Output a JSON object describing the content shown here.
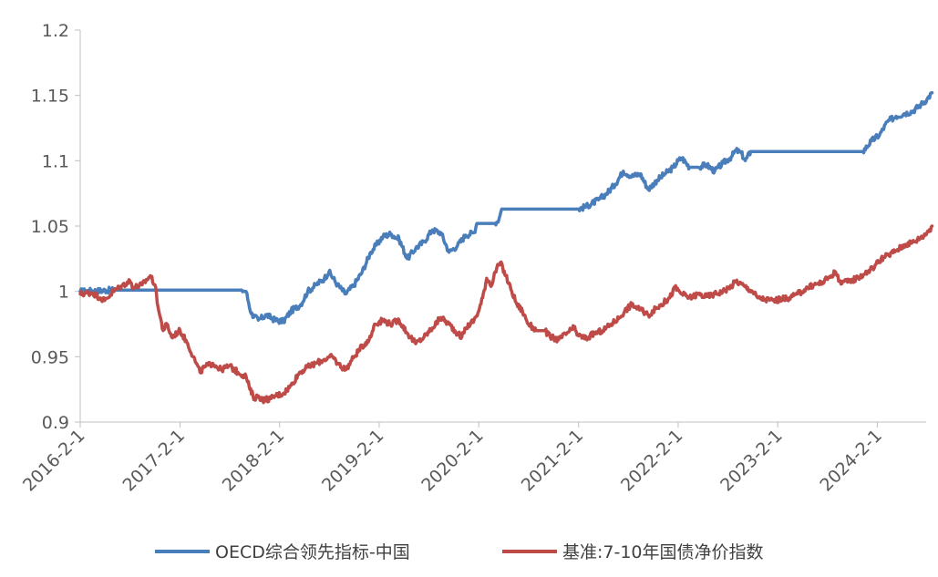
{
  "chart_data": {
    "type": "line",
    "title": "",
    "xlabel": "",
    "ylabel": "",
    "ylim": [
      0.9,
      1.2
    ],
    "yticks": [
      "0.9",
      "0.95",
      "1",
      "1.05",
      "1.1",
      "1.15",
      "1.2"
    ],
    "xticks": [
      "2016-2-1",
      "2017-2-1",
      "2018-2-1",
      "2019-2-1",
      "2020-2-1",
      "2021-2-1",
      "2022-2-1",
      "2023-2-1",
      "2024-2-1"
    ],
    "grid": false,
    "legend_position": "bottom",
    "series": [
      {
        "name": "OECD综合领先指标-中国",
        "color": "#4a7ebb",
        "points": [
          [
            "2016-02-01",
            1.0
          ],
          [
            "2016-06-01",
            1.001
          ],
          [
            "2016-10-01",
            1.001
          ],
          [
            "2017-02-01",
            1.001
          ],
          [
            "2017-06-01",
            1.001
          ],
          [
            "2017-09-15",
            1.001
          ],
          [
            "2017-10-01",
            1.0
          ],
          [
            "2017-10-20",
            0.983
          ],
          [
            "2017-11-15",
            0.978
          ],
          [
            "2017-12-15",
            0.982
          ],
          [
            "2018-01-15",
            0.978
          ],
          [
            "2018-02-15",
            0.977
          ],
          [
            "2018-03-15",
            0.985
          ],
          [
            "2018-04-20",
            0.99
          ],
          [
            "2018-05-15",
            1.0
          ],
          [
            "2018-06-15",
            1.005
          ],
          [
            "2018-07-15",
            1.01
          ],
          [
            "2018-08-01",
            1.015
          ],
          [
            "2018-09-01",
            1.005
          ],
          [
            "2018-10-01",
            0.998
          ],
          [
            "2018-11-01",
            1.005
          ],
          [
            "2018-12-01",
            1.015
          ],
          [
            "2019-01-01",
            1.03
          ],
          [
            "2019-02-15",
            1.042
          ],
          [
            "2019-03-15",
            1.044
          ],
          [
            "2019-04-15",
            1.04
          ],
          [
            "2019-05-15",
            1.025
          ],
          [
            "2019-06-15",
            1.033
          ],
          [
            "2019-07-15",
            1.038
          ],
          [
            "2019-08-15",
            1.047
          ],
          [
            "2019-09-15",
            1.045
          ],
          [
            "2019-10-15",
            1.03
          ],
          [
            "2019-11-15",
            1.035
          ],
          [
            "2019-12-15",
            1.043
          ],
          [
            "2020-01-15",
            1.045
          ],
          [
            "2020-01-25",
            1.052
          ],
          [
            "2020-04-01",
            1.052
          ],
          [
            "2020-04-15",
            1.055
          ],
          [
            "2020-04-25",
            1.063
          ],
          [
            "2020-08-01",
            1.063
          ],
          [
            "2020-12-01",
            1.063
          ],
          [
            "2021-02-01",
            1.063
          ],
          [
            "2021-03-01",
            1.065
          ],
          [
            "2021-04-15",
            1.07
          ],
          [
            "2021-05-15",
            1.075
          ],
          [
            "2021-06-15",
            1.082
          ],
          [
            "2021-07-15",
            1.092
          ],
          [
            "2021-08-15",
            1.088
          ],
          [
            "2021-09-15",
            1.09
          ],
          [
            "2021-10-15",
            1.078
          ],
          [
            "2021-11-15",
            1.085
          ],
          [
            "2021-12-15",
            1.09
          ],
          [
            "2022-01-15",
            1.095
          ],
          [
            "2022-02-01",
            1.1
          ],
          [
            "2022-02-15",
            1.102
          ],
          [
            "2022-03-15",
            1.095
          ],
          [
            "2022-04-15",
            1.095
          ],
          [
            "2022-05-15",
            1.097
          ],
          [
            "2022-06-15",
            1.092
          ],
          [
            "2022-07-15",
            1.098
          ],
          [
            "2022-08-15",
            1.103
          ],
          [
            "2022-09-01",
            1.108
          ],
          [
            "2022-09-20",
            1.106
          ],
          [
            "2022-10-05",
            1.1
          ],
          [
            "2022-10-25",
            1.107
          ],
          [
            "2023-02-01",
            1.107
          ],
          [
            "2023-07-01",
            1.107
          ],
          [
            "2023-12-10",
            1.107
          ],
          [
            "2024-01-10",
            1.115
          ],
          [
            "2024-02-10",
            1.12
          ],
          [
            "2024-03-10",
            1.13
          ],
          [
            "2024-04-10",
            1.134
          ],
          [
            "2024-05-10",
            1.136
          ],
          [
            "2024-06-10",
            1.138
          ],
          [
            "2024-07-10",
            1.143
          ],
          [
            "2024-08-01",
            1.147
          ],
          [
            "2024-08-20",
            1.152
          ]
        ]
      },
      {
        "name": "基准:7-10年国债净价指数",
        "color": "#be4b48",
        "points": [
          [
            "2016-02-01",
            0.998
          ],
          [
            "2016-03-15",
            0.999
          ],
          [
            "2016-04-15",
            0.995
          ],
          [
            "2016-05-01",
            0.993
          ],
          [
            "2016-06-01",
            1.0
          ],
          [
            "2016-07-01",
            1.004
          ],
          [
            "2016-08-01",
            1.008
          ],
          [
            "2016-08-15",
            1.003
          ],
          [
            "2016-09-15",
            1.005
          ],
          [
            "2016-10-15",
            1.012
          ],
          [
            "2016-11-01",
            1.005
          ],
          [
            "2016-11-15",
            0.985
          ],
          [
            "2016-12-01",
            0.97
          ],
          [
            "2016-12-15",
            0.975
          ],
          [
            "2017-01-01",
            0.965
          ],
          [
            "2017-02-01",
            0.97
          ],
          [
            "2017-03-01",
            0.96
          ],
          [
            "2017-04-01",
            0.945
          ],
          [
            "2017-04-15",
            0.938
          ],
          [
            "2017-05-01",
            0.942
          ],
          [
            "2017-06-01",
            0.945
          ],
          [
            "2017-07-01",
            0.94
          ],
          [
            "2017-08-01",
            0.943
          ],
          [
            "2017-09-01",
            0.938
          ],
          [
            "2017-10-01",
            0.935
          ],
          [
            "2017-10-15",
            0.925
          ],
          [
            "2017-11-01",
            0.918
          ],
          [
            "2017-11-15",
            0.92
          ],
          [
            "2017-12-01",
            0.917
          ],
          [
            "2018-01-01",
            0.918
          ],
          [
            "2018-01-15",
            0.92
          ],
          [
            "2018-02-15",
            0.922
          ],
          [
            "2018-03-15",
            0.928
          ],
          [
            "2018-04-15",
            0.938
          ],
          [
            "2018-05-15",
            0.942
          ],
          [
            "2018-06-15",
            0.945
          ],
          [
            "2018-07-15",
            0.948
          ],
          [
            "2018-08-15",
            0.95
          ],
          [
            "2018-09-01",
            0.945
          ],
          [
            "2018-10-01",
            0.94
          ],
          [
            "2018-11-01",
            0.95
          ],
          [
            "2018-12-01",
            0.958
          ],
          [
            "2019-01-01",
            0.965
          ],
          [
            "2019-01-15",
            0.975
          ],
          [
            "2019-02-15",
            0.978
          ],
          [
            "2019-03-15",
            0.975
          ],
          [
            "2019-04-15",
            0.978
          ],
          [
            "2019-05-15",
            0.968
          ],
          [
            "2019-06-15",
            0.96
          ],
          [
            "2019-07-15",
            0.965
          ],
          [
            "2019-08-15",
            0.972
          ],
          [
            "2019-09-15",
            0.98
          ],
          [
            "2019-10-15",
            0.975
          ],
          [
            "2019-11-15",
            0.968
          ],
          [
            "2019-12-01",
            0.965
          ],
          [
            "2019-12-15",
            0.972
          ],
          [
            "2020-01-15",
            0.978
          ],
          [
            "2020-02-01",
            0.985
          ],
          [
            "2020-02-15",
            0.995
          ],
          [
            "2020-03-01",
            1.01
          ],
          [
            "2020-03-20",
            1.005
          ],
          [
            "2020-04-01",
            1.015
          ],
          [
            "2020-04-20",
            1.022
          ],
          [
            "2020-05-10",
            1.012
          ],
          [
            "2020-06-01",
            1.0
          ],
          [
            "2020-06-20",
            0.99
          ],
          [
            "2020-07-10",
            0.985
          ],
          [
            "2020-08-01",
            0.975
          ],
          [
            "2020-09-01",
            0.97
          ],
          [
            "2020-10-01",
            0.97
          ],
          [
            "2020-10-20",
            0.965
          ],
          [
            "2020-11-20",
            0.963
          ],
          [
            "2020-12-20",
            0.968
          ],
          [
            "2021-01-15",
            0.972
          ],
          [
            "2021-02-01",
            0.966
          ],
          [
            "2021-03-01",
            0.964
          ],
          [
            "2021-04-01",
            0.968
          ],
          [
            "2021-05-01",
            0.97
          ],
          [
            "2021-06-01",
            0.975
          ],
          [
            "2021-07-01",
            0.98
          ],
          [
            "2021-07-20",
            0.985
          ],
          [
            "2021-08-15",
            0.99
          ],
          [
            "2021-09-15",
            0.986
          ],
          [
            "2021-10-15",
            0.982
          ],
          [
            "2021-11-01",
            0.985
          ],
          [
            "2021-12-01",
            0.99
          ],
          [
            "2022-01-01",
            0.995
          ],
          [
            "2022-01-20",
            1.003
          ],
          [
            "2022-02-15",
            0.998
          ],
          [
            "2022-03-15",
            0.995
          ],
          [
            "2022-04-15",
            0.998
          ],
          [
            "2022-05-15",
            0.996
          ],
          [
            "2022-06-15",
            0.998
          ],
          [
            "2022-07-15",
            1.0
          ],
          [
            "2022-08-15",
            1.004
          ],
          [
            "2022-09-01",
            1.008
          ],
          [
            "2022-10-01",
            1.004
          ],
          [
            "2022-11-01",
            1.0
          ],
          [
            "2022-11-20",
            0.995
          ],
          [
            "2022-12-15",
            0.994
          ],
          [
            "2023-01-15",
            0.993
          ],
          [
            "2023-02-15",
            0.994
          ],
          [
            "2023-03-15",
            0.995
          ],
          [
            "2023-04-15",
            0.998
          ],
          [
            "2023-05-15",
            1.002
          ],
          [
            "2023-06-15",
            1.005
          ],
          [
            "2023-07-15",
            1.007
          ],
          [
            "2023-08-15",
            1.012
          ],
          [
            "2023-09-01",
            1.015
          ],
          [
            "2023-09-15",
            1.008
          ],
          [
            "2023-10-15",
            1.007
          ],
          [
            "2023-11-15",
            1.01
          ],
          [
            "2023-12-15",
            1.013
          ],
          [
            "2024-01-15",
            1.018
          ],
          [
            "2024-02-15",
            1.025
          ],
          [
            "2024-03-15",
            1.028
          ],
          [
            "2024-04-15",
            1.032
          ],
          [
            "2024-05-15",
            1.036
          ],
          [
            "2024-06-15",
            1.038
          ],
          [
            "2024-07-15",
            1.042
          ],
          [
            "2024-08-01",
            1.045
          ],
          [
            "2024-08-20",
            1.05
          ]
        ]
      }
    ]
  }
}
